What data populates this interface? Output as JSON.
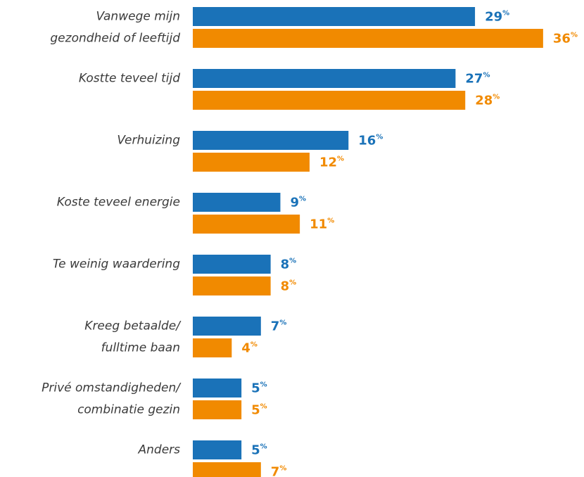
{
  "chart_data": {
    "type": "bar",
    "orientation": "horizontal",
    "categories": [
      [
        "Vanwege mijn",
        "gezondheid of leeftijd"
      ],
      [
        "Kostte teveel tijd"
      ],
      [
        "Verhuizing"
      ],
      [
        "Koste teveel energie"
      ],
      [
        "Te weinig waardering"
      ],
      [
        "Kreeg betaalde/",
        "fulltime baan"
      ],
      [
        "Privé omstandigheden/",
        "combinatie gezin"
      ],
      [
        "Anders"
      ]
    ],
    "series": [
      {
        "color": "#1a72b8",
        "values": [
          29,
          27,
          16,
          9,
          8,
          7,
          5,
          5
        ],
        "value_labels": [
          "29%",
          "27%",
          "16%",
          "9%",
          "8%",
          "7%",
          "5%",
          "5%"
        ]
      },
      {
        "color": "#f18a00",
        "values": [
          36,
          28,
          12,
          11,
          8,
          4,
          5,
          7
        ],
        "value_labels": [
          "36%",
          "28%",
          "12%",
          "11%",
          "8%",
          "4%",
          "5%",
          "7%"
        ]
      }
    ]
  }
}
